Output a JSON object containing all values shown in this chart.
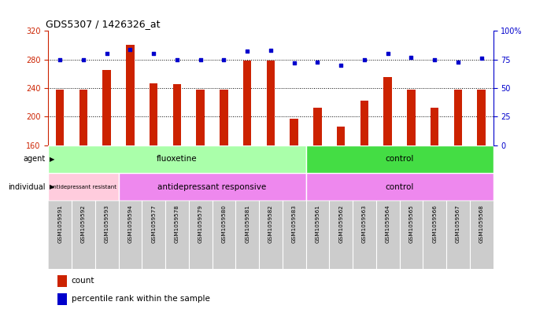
{
  "title": "GDS5307 / 1426326_at",
  "samples": [
    "GSM1059591",
    "GSM1059592",
    "GSM1059593",
    "GSM1059594",
    "GSM1059577",
    "GSM1059578",
    "GSM1059579",
    "GSM1059580",
    "GSM1059581",
    "GSM1059582",
    "GSM1059583",
    "GSM1059561",
    "GSM1059562",
    "GSM1059563",
    "GSM1059564",
    "GSM1059565",
    "GSM1059566",
    "GSM1059567",
    "GSM1059568"
  ],
  "bar_values": [
    238,
    238,
    265,
    300,
    247,
    246,
    238,
    238,
    278,
    278,
    197,
    213,
    186,
    222,
    255,
    238,
    212,
    238,
    238
  ],
  "percentile_values": [
    75,
    75,
    80,
    84,
    80,
    75,
    75,
    75,
    82,
    83,
    72,
    73,
    70,
    75,
    80,
    77,
    75,
    73,
    76
  ],
  "ylim_left": [
    160,
    320
  ],
  "ylim_right": [
    0,
    100
  ],
  "yticks_left": [
    160,
    200,
    240,
    280,
    320
  ],
  "yticks_right": [
    0,
    25,
    50,
    75,
    100
  ],
  "ytick_labels_right": [
    "0",
    "25",
    "50",
    "75",
    "100%"
  ],
  "bar_color": "#CC2200",
  "dot_color": "#0000CC",
  "background_color": "#FFFFFF",
  "grid_color": "#000000",
  "agent_fluoxetine_count": 11,
  "agent_control_count": 8,
  "individual_resistant_count": 3,
  "individual_responsive_count": 8,
  "individual_control_count": 8,
  "agent_fluoxetine_label": "fluoxetine",
  "agent_control_label": "control",
  "individual_resistant_label": "antidepressant resistant",
  "individual_responsive_label": "antidepressant responsive",
  "individual_control_label": "control",
  "color_fluoxetine": "#AAFFAA",
  "color_control_agent": "#44DD44",
  "color_resistant": "#FFCCDD",
  "color_responsive": "#EE88EE",
  "color_control_individual": "#EE88EE",
  "color_label_bg": "#CCCCCC",
  "legend_count_label": "count",
  "legend_percentile_label": "percentile rank within the sample"
}
